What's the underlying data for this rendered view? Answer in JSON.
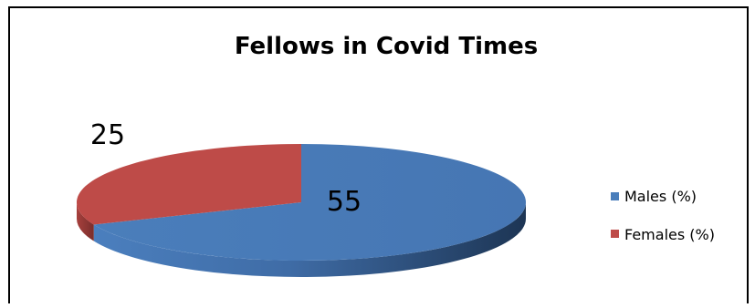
{
  "chart_data": {
    "type": "pie",
    "title": "Fellows in Covid Times",
    "categories": [
      "Males (%)",
      "Females (%)"
    ],
    "values": [
      55,
      25
    ],
    "data_labels": [
      "55",
      "25"
    ],
    "colors": [
      "#4a7ebb",
      "#be4b48"
    ],
    "pie_3d": true,
    "legend_position": "right"
  }
}
